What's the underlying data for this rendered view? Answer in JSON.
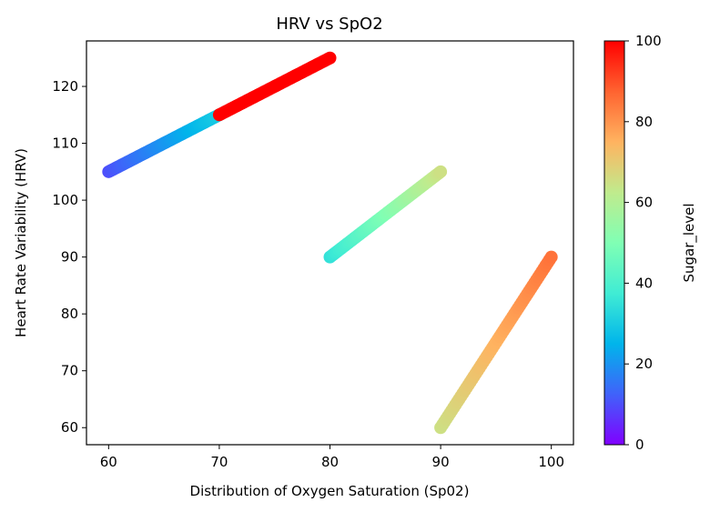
{
  "chart_data": {
    "type": "scatter",
    "title": "HRV vs SpO2",
    "xlabel": "Distribution of Oxygen Saturation (Sp02)",
    "ylabel": "Heart Rate Variability (HRV)",
    "xlim": [
      58,
      102
    ],
    "ylim": [
      57,
      128
    ],
    "xticks": [
      60,
      70,
      80,
      90,
      100
    ],
    "yticks": [
      60,
      70,
      80,
      90,
      100,
      110,
      120
    ],
    "colorbar": {
      "label": "Sugar_level",
      "range": [
        0,
        100
      ],
      "ticks": [
        0,
        20,
        40,
        60,
        80,
        100
      ],
      "colormap": "rainbow"
    },
    "segments": [
      {
        "x_start": 60,
        "y_start": 105,
        "x_end": 70,
        "y_end": 115,
        "sugar_start": 10,
        "sugar_end": 30
      },
      {
        "x_start": 70,
        "y_start": 115,
        "x_end": 80,
        "y_end": 125,
        "sugar_start": 100,
        "sugar_end": 100
      },
      {
        "x_start": 80,
        "y_start": 90,
        "x_end": 90,
        "y_end": 105,
        "sugar_start": 35,
        "sugar_end": 65
      },
      {
        "x_start": 90,
        "y_start": 60,
        "x_end": 100,
        "y_end": 90,
        "sugar_start": 65,
        "sugar_end": 85
      }
    ],
    "grid": false,
    "legend": "none"
  }
}
